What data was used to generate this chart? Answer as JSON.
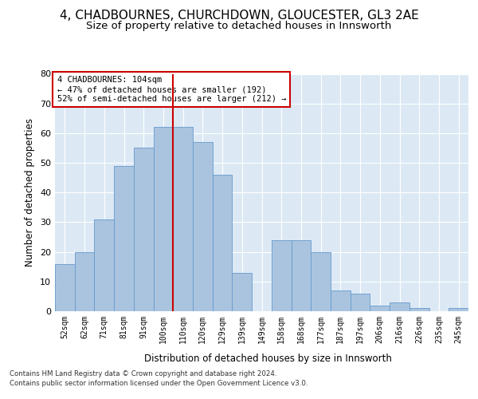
{
  "title": "4, CHADBOURNES, CHURCHDOWN, GLOUCESTER, GL3 2AE",
  "subtitle": "Size of property relative to detached houses in Innsworth",
  "xlabel": "Distribution of detached houses by size in Innsworth",
  "ylabel": "Number of detached properties",
  "categories": [
    "52sqm",
    "62sqm",
    "71sqm",
    "81sqm",
    "91sqm",
    "100sqm",
    "110sqm",
    "120sqm",
    "129sqm",
    "139sqm",
    "149sqm",
    "158sqm",
    "168sqm",
    "177sqm",
    "187sqm",
    "197sqm",
    "206sqm",
    "216sqm",
    "226sqm",
    "235sqm",
    "245sqm"
  ],
  "values": [
    16,
    20,
    31,
    49,
    55,
    62,
    62,
    57,
    46,
    13,
    0,
    24,
    24,
    20,
    7,
    6,
    2,
    3,
    1,
    0,
    1
  ],
  "bar_color": "#aac4df",
  "bar_edge_color": "#6699cc",
  "vline_x": 5.5,
  "vline_color": "#cc0000",
  "annotation_text": "4 CHADBOURNES: 104sqm\n← 47% of detached houses are smaller (192)\n52% of semi-detached houses are larger (212) →",
  "annotation_box_color": "#ffffff",
  "annotation_box_edge": "#cc0000",
  "ylim": [
    0,
    80
  ],
  "yticks": [
    0,
    10,
    20,
    30,
    40,
    50,
    60,
    70,
    80
  ],
  "background_color": "#dce9f5",
  "footer_line1": "Contains HM Land Registry data © Crown copyright and database right 2024.",
  "footer_line2": "Contains public sector information licensed under the Open Government Licence v3.0.",
  "title_fontsize": 11,
  "subtitle_fontsize": 9.5,
  "xlabel_fontsize": 8.5,
  "ylabel_fontsize": 8.5
}
